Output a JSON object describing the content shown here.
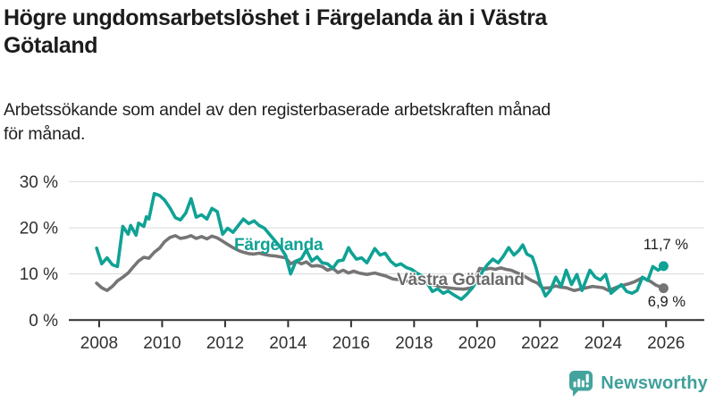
{
  "header": {
    "title_lines": [
      "Högre ungdomsarbetslöshet i Färgelanda än i Västra",
      "Götaland"
    ],
    "subtitle_lines": [
      "Arbetssökande som andel av den registerbaserade arbetskraften månad",
      "för månad."
    ]
  },
  "chart_data": {
    "type": "line",
    "title": "Högre ungdomsarbetslöshet i Färgelanda än i Västra Götaland",
    "subtitle": "Arbetssökande som andel av den registerbaserade arbetskraften månad för månad.",
    "xlabel": "",
    "ylabel": "",
    "unit": "%",
    "grid": true,
    "legend_position": "inline-labels",
    "xlim": [
      2006.98,
      2027.27
    ],
    "ylim": [
      0,
      30
    ],
    "grid_color": "#d8d8d8",
    "axis_color": "#2d2d2d",
    "tick_label_color": "#303030",
    "x_ticks": [
      {
        "value": 2008,
        "label": "2008"
      },
      {
        "value": 2010,
        "label": "2010"
      },
      {
        "value": 2012,
        "label": "2012"
      },
      {
        "value": 2014,
        "label": "2014"
      },
      {
        "value": 2016,
        "label": "2016"
      },
      {
        "value": 2018,
        "label": "2018"
      },
      {
        "value": 2020,
        "label": "2020"
      },
      {
        "value": 2022,
        "label": "2022"
      },
      {
        "value": 2024,
        "label": "2024"
      },
      {
        "value": 2026,
        "label": "2026"
      }
    ],
    "y_ticks": [
      {
        "value": 0,
        "label": "0 %"
      },
      {
        "value": 10,
        "label": "10 %"
      },
      {
        "value": 20,
        "label": "20 %"
      },
      {
        "value": 30,
        "label": "30 %"
      }
    ],
    "series": [
      {
        "name": "Färgelanda",
        "color": "#0fa295",
        "end_label": "11,7 %",
        "end_value": 11.7,
        "x": [
          2007.92,
          2008.08,
          2008.25,
          2008.42,
          2008.58,
          2008.75,
          2008.92,
          2009.0,
          2009.17,
          2009.25,
          2009.42,
          2009.5,
          2009.58,
          2009.75,
          2009.92,
          2010.08,
          2010.25,
          2010.42,
          2010.58,
          2010.75,
          2010.92,
          2011.08,
          2011.25,
          2011.42,
          2011.58,
          2011.75,
          2011.92,
          2012.08,
          2012.25,
          2012.42,
          2012.58,
          2012.75,
          2012.92,
          2013.08,
          2013.25,
          2013.42,
          2013.58,
          2013.75,
          2013.92,
          2014.08,
          2014.25,
          2014.42,
          2014.58,
          2014.75,
          2014.92,
          2015.08,
          2015.25,
          2015.42,
          2015.58,
          2015.75,
          2015.92,
          2016.0,
          2016.17,
          2016.33,
          2016.5,
          2016.75,
          2016.92,
          2017.08,
          2017.25,
          2017.42,
          2017.58,
          2017.75,
          2017.92,
          2018.08,
          2018.25,
          2018.42,
          2018.58,
          2018.75,
          2018.92,
          2019.08,
          2019.25,
          2019.5,
          2019.67,
          2019.83,
          2020.0,
          2020.17,
          2020.33,
          2020.5,
          2020.67,
          2020.83,
          2021.0,
          2021.17,
          2021.33,
          2021.45,
          2021.58,
          2021.75,
          2021.87,
          2022.0,
          2022.17,
          2022.33,
          2022.5,
          2022.67,
          2022.83,
          2023.0,
          2023.17,
          2023.33,
          2023.58,
          2023.75,
          2023.92,
          2024.08,
          2024.25,
          2024.42,
          2024.58,
          2024.75,
          2024.92,
          2025.08,
          2025.25,
          2025.42,
          2025.58,
          2025.75,
          2025.92
        ],
        "values": [
          15.6,
          12.2,
          13.5,
          12.0,
          11.6,
          20.3,
          18.6,
          20.5,
          18.4,
          21.0,
          20.3,
          22.4,
          21.9,
          27.4,
          27.0,
          26.0,
          24.3,
          22.2,
          21.7,
          23.2,
          26.3,
          22.3,
          22.8,
          21.9,
          24.2,
          23.5,
          18.6,
          19.9,
          19.0,
          20.5,
          21.9,
          20.9,
          21.5,
          20.5,
          19.9,
          18.5,
          17.2,
          15.8,
          14.0,
          10.0,
          12.8,
          13.3,
          15.2,
          12.8,
          13.7,
          12.4,
          12.2,
          11.2,
          12.8,
          13.0,
          15.7,
          14.7,
          13.2,
          13.5,
          12.4,
          15.5,
          14.1,
          14.5,
          12.8,
          11.8,
          12.2,
          11.4,
          11.0,
          10.2,
          9.6,
          8.0,
          6.2,
          6.8,
          5.8,
          6.3,
          5.5,
          4.5,
          5.6,
          6.8,
          8.5,
          10.5,
          12.0,
          13.2,
          12.4,
          13.8,
          15.7,
          14.1,
          15.1,
          16.3,
          14.3,
          13.7,
          11.4,
          8.0,
          5.2,
          6.5,
          9.3,
          7.3,
          10.8,
          7.7,
          9.9,
          6.4,
          10.8,
          9.3,
          8.7,
          9.9,
          5.8,
          6.8,
          7.7,
          6.2,
          5.8,
          6.4,
          9.3,
          8.6,
          11.6,
          10.8,
          11.7
        ]
      },
      {
        "name": "Västra Götaland",
        "color": "#757575",
        "label_color": "#6b6b6b",
        "end_label": "6,9 %",
        "end_value": 6.9,
        "x": [
          2007.92,
          2008.08,
          2008.25,
          2008.42,
          2008.58,
          2008.75,
          2008.92,
          2009.08,
          2009.25,
          2009.42,
          2009.58,
          2009.75,
          2009.92,
          2010.08,
          2010.25,
          2010.42,
          2010.58,
          2010.75,
          2010.92,
          2011.08,
          2011.25,
          2011.42,
          2011.58,
          2011.75,
          2011.92,
          2012.08,
          2012.25,
          2012.42,
          2012.58,
          2012.75,
          2012.92,
          2013.08,
          2013.25,
          2013.42,
          2013.58,
          2013.75,
          2013.92,
          2014.08,
          2014.25,
          2014.42,
          2014.58,
          2014.75,
          2014.92,
          2015.08,
          2015.25,
          2015.42,
          2015.58,
          2015.75,
          2015.92,
          2016.08,
          2016.25,
          2016.5,
          2016.75,
          2017.08,
          2017.33,
          2017.58,
          2017.92,
          2018.17,
          2018.42,
          2018.58,
          2018.83,
          2019.08,
          2019.33,
          2019.58,
          2019.83,
          2019.92,
          2020.08,
          2020.25,
          2020.42,
          2020.58,
          2020.75,
          2020.92,
          2021.08,
          2021.25,
          2021.42,
          2021.58,
          2021.75,
          2021.92,
          2022.08,
          2022.33,
          2022.5,
          2022.67,
          2022.83,
          2023.08,
          2023.33,
          2023.67,
          2024.0,
          2024.17,
          2024.5,
          2024.83,
          2025.0,
          2025.25,
          2025.5,
          2025.67,
          2025.92
        ],
        "values": [
          8.0,
          7.0,
          6.4,
          7.3,
          8.5,
          9.3,
          10.2,
          11.5,
          12.8,
          13.6,
          13.4,
          14.7,
          15.6,
          17.0,
          17.9,
          18.3,
          17.7,
          17.9,
          18.3,
          17.7,
          18.1,
          17.6,
          18.2,
          17.8,
          17.1,
          16.4,
          15.7,
          15.1,
          14.7,
          14.4,
          14.3,
          14.5,
          14.2,
          14.0,
          13.9,
          13.7,
          13.5,
          12.2,
          12.8,
          12.2,
          12.6,
          11.7,
          11.8,
          11.6,
          10.8,
          11.2,
          10.3,
          10.8,
          10.2,
          10.6,
          10.2,
          9.9,
          10.2,
          9.6,
          8.9,
          8.7,
          8.3,
          8.7,
          8.2,
          7.7,
          7.3,
          7.0,
          6.8,
          6.7,
          7.0,
          8.5,
          11.2,
          11.0,
          11.2,
          11.0,
          11.3,
          11.0,
          10.8,
          10.3,
          9.8,
          9.2,
          8.5,
          8.0,
          6.9,
          7.0,
          7.4,
          7.1,
          7.0,
          6.4,
          6.8,
          7.3,
          7.0,
          6.4,
          7.3,
          7.9,
          8.3,
          9.2,
          8.4,
          7.6,
          6.9
        ]
      }
    ]
  },
  "footer": {
    "brand": "Newsworthy",
    "brand_color": "#3fa09a",
    "logo_icon": "speech-bubble-bar-chart-exclamation"
  }
}
